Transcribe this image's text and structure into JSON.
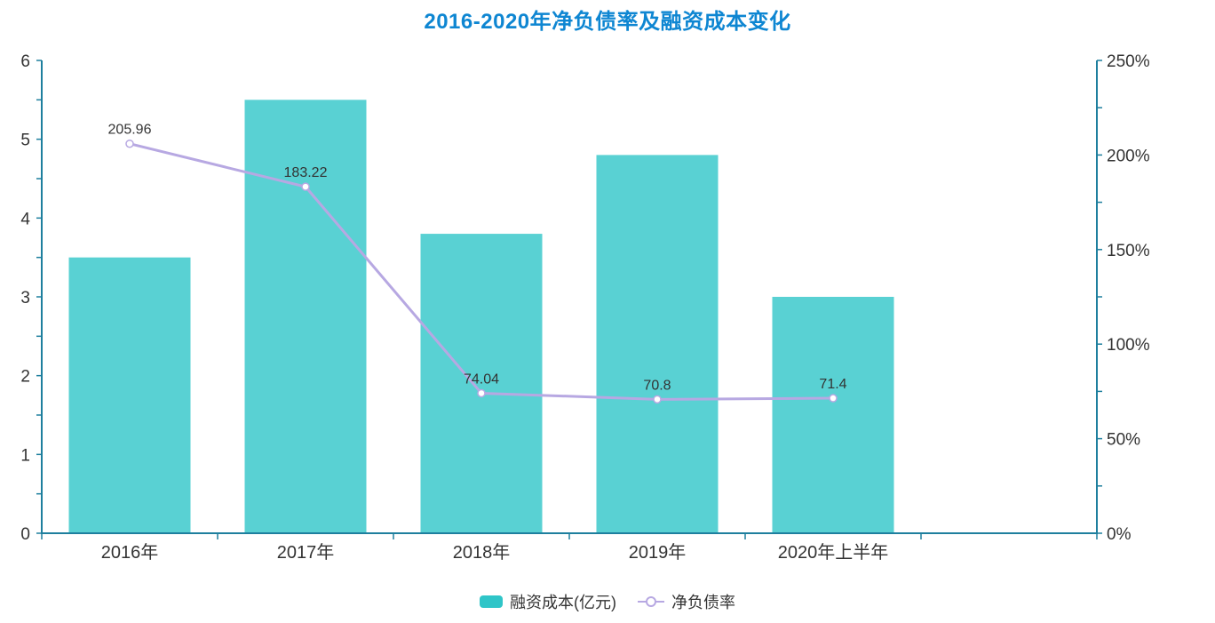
{
  "chart_data": {
    "type": "combo",
    "title": "2016-2020年净负债率及融资成本变化",
    "categories": [
      "2016年",
      "2017年",
      "2018年",
      "2019年",
      "2020年上半年"
    ],
    "series": [
      {
        "name": "融资成本(亿元)",
        "type": "bar",
        "yaxis": "left",
        "values": [
          3.5,
          5.5,
          3.8,
          4.8,
          3.0
        ]
      },
      {
        "name": "净负债率",
        "type": "line",
        "yaxis": "right",
        "unit": "%",
        "values": [
          205.96,
          183.22,
          74.04,
          70.8,
          71.4
        ],
        "point_labels": [
          "205.96",
          "183.22",
          "74.04",
          "70.8",
          "71.4"
        ]
      }
    ],
    "left_axis": {
      "min": 0,
      "max": 6,
      "label_interval": 1,
      "tick_interval": 0.5,
      "tick_labels": [
        "0",
        "1",
        "2",
        "3",
        "4",
        "5",
        "6"
      ]
    },
    "right_axis": {
      "min": 0,
      "max": 250,
      "label_interval": 50,
      "tick_interval": 25,
      "tick_labels": [
        "0%",
        "50%",
        "100%",
        "150%",
        "200%",
        "250%"
      ]
    },
    "grid": false,
    "legend_position": "bottom"
  },
  "style": {
    "title_color": "#0e86d2",
    "axis_color": "#1e7f9e",
    "text_color": "#333333",
    "bar_color": "#2fc5c8",
    "bar_fill_opacity": 0.8,
    "line_color": "#b7a8e2",
    "marker_fill": "#ffffff",
    "background": "#ffffff"
  }
}
